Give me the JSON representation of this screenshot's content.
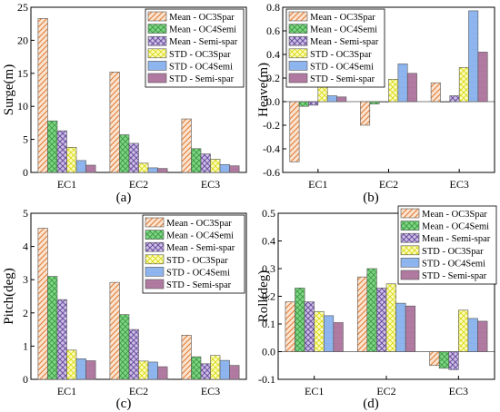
{
  "patterns": {
    "fwd": "#e07b39",
    "grid": "#3c9a3c",
    "cross": "#6a4f9e",
    "dots": "#d8d80a",
    "blue": "#6d9fe0",
    "purple": "#a46592"
  },
  "chart_data": [
    {
      "type": "bar",
      "panel_label": "(a)",
      "ylabel": "Surge(m)",
      "ylim": [
        0,
        25
      ],
      "yticks": [
        "0",
        "5",
        "10",
        "15",
        "20",
        "25"
      ],
      "categories": [
        "EC1",
        "EC2",
        "EC3"
      ],
      "legend_position": "top-right",
      "series": [
        {
          "name": "Mean - OC3Spar",
          "color": "#e8a66c",
          "pattern": "fwd",
          "values": [
            23.3,
            15.2,
            8.1
          ]
        },
        {
          "name": "Mean - OC4Semi",
          "color": "#5fd06a",
          "pattern": "grid",
          "values": [
            7.8,
            5.7,
            3.6
          ]
        },
        {
          "name": "Mean - Semi-spar",
          "color": "#9b82c8",
          "pattern": "cross",
          "values": [
            6.3,
            4.4,
            2.8
          ]
        },
        {
          "name": "STD - OC3Spar",
          "color": "#f2f27e",
          "pattern": "dots",
          "values": [
            3.8,
            1.4,
            2.0
          ]
        },
        {
          "name": "STD - OC4Semi",
          "color": "#8fb5ee",
          "pattern": "blue",
          "values": [
            1.8,
            0.7,
            1.2
          ]
        },
        {
          "name": "STD - Semi-spar",
          "color": "#b07aa1",
          "pattern": "purple",
          "values": [
            1.1,
            0.6,
            1.0
          ]
        }
      ]
    },
    {
      "type": "bar",
      "panel_label": "(b)",
      "ylabel": "Heave(m)",
      "ylim": [
        -0.6,
        0.8
      ],
      "yticks": [
        "-0.6",
        "-0.4",
        "-0.2",
        "0.0",
        "0.2",
        "0.4",
        "0.6",
        "0.8"
      ],
      "categories": [
        "EC1",
        "EC2",
        "EC3"
      ],
      "legend_position": "top-left",
      "series": [
        {
          "name": "Mean - OC3Spar",
          "color": "#e8a66c",
          "pattern": "fwd",
          "values": [
            -0.51,
            -0.2,
            0.16
          ]
        },
        {
          "name": "Mean - OC4Semi",
          "color": "#5fd06a",
          "pattern": "grid",
          "values": [
            -0.04,
            -0.02,
            0.0
          ]
        },
        {
          "name": "Mean - Semi-spar",
          "color": "#9b82c8",
          "pattern": "cross",
          "values": [
            -0.03,
            0.0,
            0.05
          ]
        },
        {
          "name": "STD - OC3Spar",
          "color": "#f2f27e",
          "pattern": "dots",
          "values": [
            0.16,
            0.19,
            0.29
          ]
        },
        {
          "name": "STD - OC4Semi",
          "color": "#8fb5ee",
          "pattern": "blue",
          "values": [
            0.05,
            0.32,
            0.77
          ]
        },
        {
          "name": "STD - Semi-spar",
          "color": "#b07aa1",
          "pattern": "purple",
          "values": [
            0.04,
            0.24,
            0.42
          ]
        }
      ]
    },
    {
      "type": "bar",
      "panel_label": "(c)",
      "ylabel": "Pitch(deg)",
      "ylim": [
        0,
        5
      ],
      "yticks": [
        "0",
        "1",
        "2",
        "3",
        "4",
        "5"
      ],
      "categories": [
        "EC1",
        "EC2",
        "EC3"
      ],
      "legend_position": "top-right",
      "series": [
        {
          "name": "Mean - OC3Spar",
          "color": "#e8a66c",
          "pattern": "fwd",
          "values": [
            4.55,
            2.92,
            1.33
          ]
        },
        {
          "name": "Mean - OC4Semi",
          "color": "#5fd06a",
          "pattern": "grid",
          "values": [
            3.1,
            1.95,
            0.68
          ]
        },
        {
          "name": "Mean - Semi-spar",
          "color": "#9b82c8",
          "pattern": "cross",
          "values": [
            2.4,
            1.5,
            0.47
          ]
        },
        {
          "name": "STD - OC3Spar",
          "color": "#f2f27e",
          "pattern": "dots",
          "values": [
            0.88,
            0.55,
            0.72
          ]
        },
        {
          "name": "STD - OC4Semi",
          "color": "#8fb5ee",
          "pattern": "blue",
          "values": [
            0.62,
            0.52,
            0.57
          ]
        },
        {
          "name": "STD - Semi-spar",
          "color": "#b07aa1",
          "pattern": "purple",
          "values": [
            0.56,
            0.38,
            0.42
          ]
        }
      ]
    },
    {
      "type": "bar",
      "panel_label": "(d)",
      "ylabel": "Roll(deg)",
      "ylim": [
        -0.1,
        0.5
      ],
      "yticks": [
        "-0.1",
        "0.0",
        "0.1",
        "0.2",
        "0.3",
        "0.4",
        "0.5"
      ],
      "categories": [
        "EC1",
        "EC2",
        "EC3"
      ],
      "legend_position": "top-right",
      "series": [
        {
          "name": "Mean - OC3Spar",
          "color": "#e8a66c",
          "pattern": "fwd",
          "values": [
            0.18,
            0.27,
            -0.05
          ]
        },
        {
          "name": "Mean - OC4Semi",
          "color": "#5fd06a",
          "pattern": "grid",
          "values": [
            0.23,
            0.3,
            -0.06
          ]
        },
        {
          "name": "Mean - Semi-spar",
          "color": "#9b82c8",
          "pattern": "cross",
          "values": [
            0.18,
            0.23,
            -0.065
          ]
        },
        {
          "name": "STD - OC3Spar",
          "color": "#f2f27e",
          "pattern": "dots",
          "values": [
            0.145,
            0.245,
            0.15
          ]
        },
        {
          "name": "STD - OC4Semi",
          "color": "#8fb5ee",
          "pattern": "blue",
          "values": [
            0.13,
            0.175,
            0.12
          ]
        },
        {
          "name": "STD - Semi-spar",
          "color": "#b07aa1",
          "pattern": "purple",
          "values": [
            0.105,
            0.165,
            0.11
          ]
        }
      ]
    }
  ]
}
